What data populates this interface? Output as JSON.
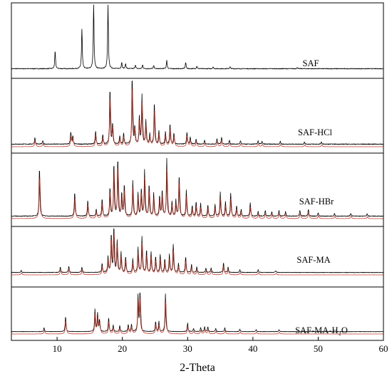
{
  "chart_data": {
    "type": "line",
    "xlabel": "2-Theta",
    "ylabel": "",
    "xlim": [
      3,
      60
    ],
    "xticks": [
      10,
      20,
      30,
      40,
      50,
      60
    ],
    "grid": false,
    "colors": {
      "experimental": "#000000",
      "simulated": "#c0392b"
    },
    "panels": [
      {
        "label": "SAF",
        "traces": [
          "experimental"
        ],
        "peaks": [
          [
            9.7,
            0.28
          ],
          [
            13.8,
            0.62
          ],
          [
            15.6,
            1.0
          ],
          [
            17.8,
            1.0
          ],
          [
            19.9,
            0.1
          ],
          [
            20.5,
            0.08
          ],
          [
            22.0,
            0.06
          ],
          [
            23.1,
            0.06
          ],
          [
            24.8,
            0.05
          ],
          [
            26.8,
            0.13
          ],
          [
            29.7,
            0.1
          ],
          [
            31.4,
            0.04
          ],
          [
            33.9,
            0.03
          ],
          [
            36.5,
            0.03
          ],
          [
            46.8,
            0.02
          ]
        ]
      },
      {
        "label": "SAF-HCl",
        "traces": [
          "experimental",
          "simulated"
        ],
        "peaks": [
          [
            6.6,
            0.1
          ],
          [
            7.8,
            0.05
          ],
          [
            12.1,
            0.18
          ],
          [
            12.4,
            0.12
          ],
          [
            15.9,
            0.2
          ],
          [
            17.0,
            0.14
          ],
          [
            18.1,
            0.82
          ],
          [
            18.5,
            0.3
          ],
          [
            19.6,
            0.12
          ],
          [
            20.2,
            0.16
          ],
          [
            21.5,
            1.0
          ],
          [
            21.9,
            0.25
          ],
          [
            22.6,
            0.4
          ],
          [
            23.0,
            0.72
          ],
          [
            23.6,
            0.35
          ],
          [
            24.2,
            0.15
          ],
          [
            24.9,
            0.62
          ],
          [
            25.6,
            0.2
          ],
          [
            26.6,
            0.18
          ],
          [
            27.3,
            0.3
          ],
          [
            27.9,
            0.16
          ],
          [
            29.9,
            0.18
          ],
          [
            30.4,
            0.1
          ],
          [
            31.3,
            0.08
          ],
          [
            32.6,
            0.06
          ],
          [
            34.5,
            0.08
          ],
          [
            35.2,
            0.1
          ],
          [
            36.4,
            0.06
          ],
          [
            38.1,
            0.05
          ],
          [
            40.8,
            0.05
          ],
          [
            41.4,
            0.04
          ],
          [
            44.2,
            0.04
          ],
          [
            47.9,
            0.03
          ],
          [
            50.5,
            0.03
          ]
        ]
      },
      {
        "label": "SAF-HBr",
        "traces": [
          "experimental",
          "simulated"
        ],
        "peaks": [
          [
            7.3,
            0.85
          ],
          [
            12.7,
            0.42
          ],
          [
            14.7,
            0.28
          ],
          [
            16.0,
            0.12
          ],
          [
            16.9,
            0.3
          ],
          [
            18.1,
            0.5
          ],
          [
            18.7,
            0.92
          ],
          [
            19.3,
            1.0
          ],
          [
            19.9,
            0.4
          ],
          [
            20.3,
            0.55
          ],
          [
            21.6,
            0.62
          ],
          [
            22.4,
            0.4
          ],
          [
            22.9,
            0.48
          ],
          [
            23.4,
            0.8
          ],
          [
            24.1,
            0.55
          ],
          [
            24.8,
            0.4
          ],
          [
            25.7,
            0.35
          ],
          [
            26.1,
            0.45
          ],
          [
            26.8,
            1.0
          ],
          [
            27.6,
            0.25
          ],
          [
            28.2,
            0.28
          ],
          [
            28.7,
            0.72
          ],
          [
            29.8,
            0.45
          ],
          [
            30.7,
            0.18
          ],
          [
            31.3,
            0.25
          ],
          [
            32.0,
            0.22
          ],
          [
            33.1,
            0.2
          ],
          [
            34.2,
            0.2
          ],
          [
            35.0,
            0.42
          ],
          [
            35.8,
            0.25
          ],
          [
            36.6,
            0.4
          ],
          [
            37.5,
            0.18
          ],
          [
            38.2,
            0.12
          ],
          [
            39.6,
            0.24
          ],
          [
            40.8,
            0.08
          ],
          [
            41.9,
            0.1
          ],
          [
            42.9,
            0.08
          ],
          [
            44.0,
            0.1
          ],
          [
            45.0,
            0.08
          ],
          [
            47.2,
            0.1
          ],
          [
            48.5,
            0.12
          ],
          [
            50.0,
            0.06
          ],
          [
            52.5,
            0.05
          ],
          [
            55.0,
            0.05
          ],
          [
            57.5,
            0.04
          ]
        ]
      },
      {
        "label": "SAF-MA",
        "traces": [
          "experimental",
          "simulated"
        ],
        "peaks": [
          [
            4.5,
            0.05
          ],
          [
            10.5,
            0.12
          ],
          [
            11.8,
            0.14
          ],
          [
            13.8,
            0.12
          ],
          [
            16.9,
            0.2
          ],
          [
            17.8,
            0.35
          ],
          [
            18.3,
            0.85
          ],
          [
            18.7,
            1.0
          ],
          [
            19.2,
            0.7
          ],
          [
            19.8,
            0.45
          ],
          [
            20.5,
            0.35
          ],
          [
            21.6,
            0.3
          ],
          [
            22.4,
            0.55
          ],
          [
            23.0,
            0.8
          ],
          [
            23.7,
            0.5
          ],
          [
            24.4,
            0.45
          ],
          [
            25.1,
            0.35
          ],
          [
            25.8,
            0.4
          ],
          [
            26.5,
            0.3
          ],
          [
            27.2,
            0.4
          ],
          [
            27.8,
            0.62
          ],
          [
            28.6,
            0.2
          ],
          [
            29.7,
            0.35
          ],
          [
            30.6,
            0.18
          ],
          [
            31.4,
            0.12
          ],
          [
            32.8,
            0.1
          ],
          [
            33.6,
            0.1
          ],
          [
            35.5,
            0.22
          ],
          [
            36.2,
            0.12
          ],
          [
            38.0,
            0.06
          ],
          [
            40.8,
            0.06
          ],
          [
            43.5,
            0.04
          ]
        ]
      },
      {
        "label": "SAF-MA-H₂O",
        "traces": [
          "experimental",
          "simulated"
        ],
        "peaks": [
          [
            8.0,
            0.1
          ],
          [
            11.3,
            0.38
          ],
          [
            15.8,
            0.55
          ],
          [
            16.2,
            0.45
          ],
          [
            16.5,
            0.3
          ],
          [
            17.9,
            0.35
          ],
          [
            18.6,
            0.16
          ],
          [
            19.6,
            0.15
          ],
          [
            20.9,
            0.18
          ],
          [
            21.4,
            0.18
          ],
          [
            22.4,
            0.9
          ],
          [
            22.7,
            1.0
          ],
          [
            25.1,
            0.25
          ],
          [
            25.6,
            0.25
          ],
          [
            26.6,
            0.95
          ],
          [
            30.0,
            0.22
          ],
          [
            30.9,
            0.08
          ],
          [
            32.0,
            0.1
          ],
          [
            32.6,
            0.12
          ],
          [
            33.1,
            0.12
          ],
          [
            34.3,
            0.08
          ],
          [
            35.7,
            0.1
          ],
          [
            38.0,
            0.06
          ],
          [
            40.5,
            0.05
          ],
          [
            44.0,
            0.05
          ]
        ]
      }
    ]
  }
}
